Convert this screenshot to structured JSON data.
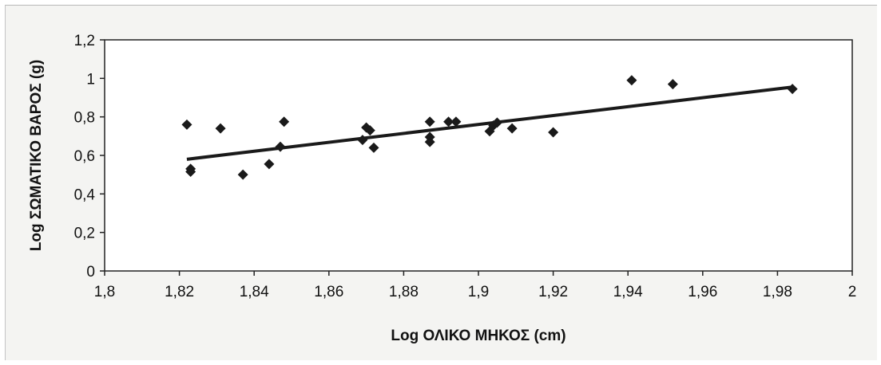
{
  "chart_data": {
    "type": "scatter",
    "title": "",
    "xlabel": "Log ΟΛΙΚΟ ΜΗΚΟΣ (cm)",
    "ylabel": "Log ΣΩΜΑΤΙΚΟ ΒΑΡΟΣ (g)",
    "xlim": [
      1.8,
      2
    ],
    "ylim": [
      0,
      1.2
    ],
    "x_ticks": [
      "1,8",
      "1,82",
      "1,84",
      "1,86",
      "1,88",
      "1,9",
      "1,92",
      "1,94",
      "1,96",
      "1,98",
      "2"
    ],
    "y_ticks": [
      "0",
      "0,2",
      "0,4",
      "0,6",
      "0,8",
      "1",
      "1,2"
    ],
    "grid": false,
    "legend": "none",
    "marker_color": "#1a1a1a",
    "series": [
      {
        "marker": "diamond",
        "points": [
          [
            1.822,
            0.76
          ],
          [
            1.823,
            0.53
          ],
          [
            1.823,
            0.515
          ],
          [
            1.831,
            0.74
          ],
          [
            1.837,
            0.5
          ],
          [
            1.844,
            0.555
          ],
          [
            1.847,
            0.645
          ],
          [
            1.848,
            0.775
          ],
          [
            1.869,
            0.68
          ],
          [
            1.87,
            0.745
          ],
          [
            1.871,
            0.73
          ],
          [
            1.872,
            0.64
          ],
          [
            1.887,
            0.775
          ],
          [
            1.887,
            0.695
          ],
          [
            1.887,
            0.67
          ],
          [
            1.892,
            0.775
          ],
          [
            1.894,
            0.775
          ],
          [
            1.903,
            0.725
          ],
          [
            1.904,
            0.755
          ],
          [
            1.905,
            0.77
          ],
          [
            1.909,
            0.74
          ],
          [
            1.92,
            0.72
          ],
          [
            1.941,
            0.99
          ],
          [
            1.952,
            0.97
          ],
          [
            1.984,
            0.945
          ]
        ]
      }
    ],
    "trendline": {
      "type": "linear",
      "from": [
        1.822,
        0.58
      ],
      "to": [
        1.984,
        0.955
      ]
    }
  }
}
